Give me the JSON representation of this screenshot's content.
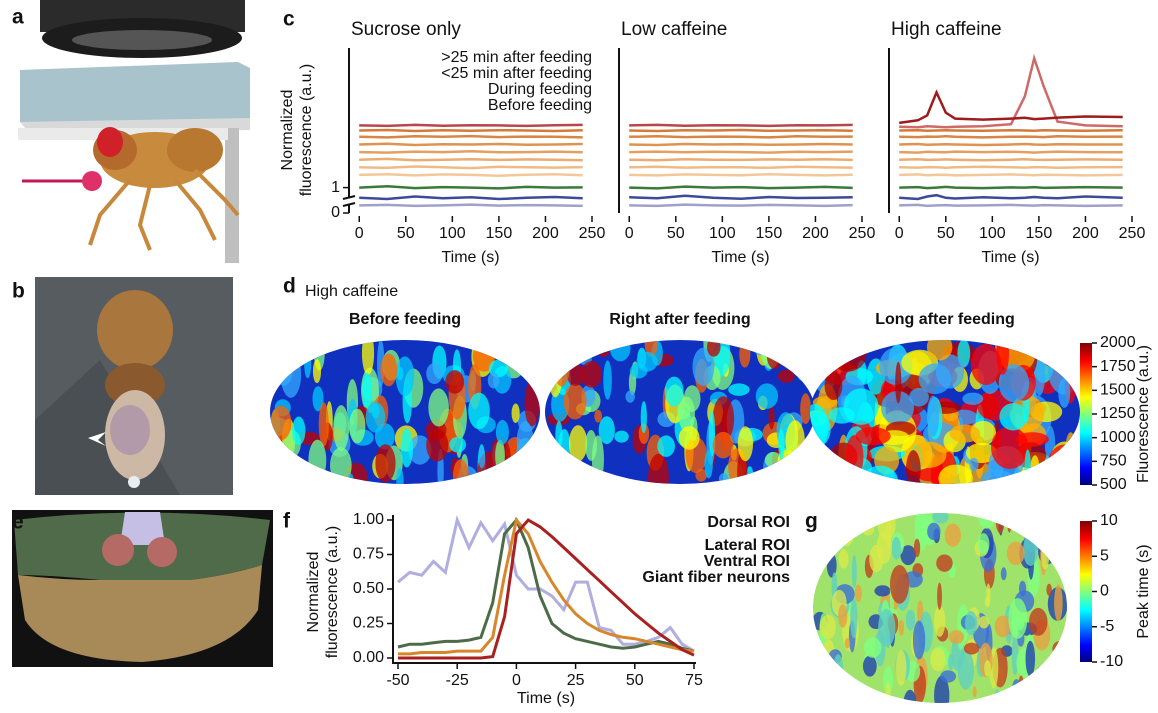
{
  "image_panels": [
    {
      "label": "a"
    },
    {
      "label": "b"
    },
    {
      "label": "e"
    }
  ],
  "chart_data": [
    {
      "type": "line-stack",
      "label": "c",
      "ylabel": [
        "Normalized",
        "fluorescence (a.u.)"
      ],
      "ylim": [
        0,
        6.5
      ],
      "yticks": [
        0,
        1
      ],
      "xlim": [
        -11,
        250
      ],
      "xticks": [
        0,
        50,
        100,
        150,
        200,
        250
      ],
      "legend": [
        {
          "name": ">25 min after feeding",
          "color": "#c0392b"
        },
        {
          "name": "<25 min after feeding",
          "color": "#f0a030"
        },
        {
          "name": "During feeding",
          "color": "#3a7a3a"
        },
        {
          "name": "Before feeding",
          "color": "#2e3c8f"
        }
      ],
      "panels": [
        {
          "title": "Sucrose only",
          "xlabel": "Time (s)",
          "x": [
            0,
            30,
            60,
            90,
            120,
            150,
            180,
            210,
            240
          ],
          "traces": [
            {
              "color": "#a0a0cc",
              "values": [
                0.3,
                0.32,
                0.28,
                0.3,
                0.33,
                0.29,
                0.31,
                0.3,
                0.28
              ]
            },
            {
              "color": "#3b4a9a",
              "values": [
                0.6,
                0.55,
                0.65,
                0.58,
                0.62,
                0.55,
                0.6,
                0.63,
                0.58
              ]
            },
            {
              "color": "#3a7a3a",
              "values": [
                1.0,
                1.05,
                0.98,
                1.02,
                1.0,
                0.97,
                1.03,
                1.0,
                1.01
              ]
            },
            {
              "color": "#f2c89a",
              "values": [
                1.5,
                1.53,
                1.48,
                1.52,
                1.5,
                1.47,
                1.51,
                1.53,
                1.49
              ]
            },
            {
              "color": "#eebb86",
              "values": [
                1.8,
                1.78,
                1.83,
                1.8,
                1.77,
                1.82,
                1.8,
                1.79,
                1.81
              ]
            },
            {
              "color": "#e9ad72",
              "values": [
                2.1,
                2.13,
                2.08,
                2.1,
                2.12,
                2.09,
                2.11,
                2.1,
                2.08
              ]
            },
            {
              "color": "#e4a060",
              "values": [
                2.4,
                2.38,
                2.42,
                2.4,
                2.43,
                2.39,
                2.4,
                2.42,
                2.39
              ]
            },
            {
              "color": "#df9350",
              "values": [
                2.7,
                2.73,
                2.68,
                2.71,
                2.7,
                2.72,
                2.69,
                2.7,
                2.72
              ]
            },
            {
              "color": "#d98644",
              "values": [
                3.0,
                2.98,
                3.02,
                3.0,
                3.03,
                2.99,
                3.01,
                3.0,
                2.98
              ]
            },
            {
              "color": "#d47a3a",
              "values": [
                3.25,
                3.27,
                3.23,
                3.26,
                3.24,
                3.26,
                3.25,
                3.23,
                3.26
              ]
            },
            {
              "color": "#b8474a",
              "values": [
                3.45,
                3.43,
                3.47,
                3.44,
                3.46,
                3.45,
                3.43,
                3.46,
                3.47
              ]
            }
          ]
        },
        {
          "title": "Low caffeine",
          "xlabel": "Time (s)",
          "x": [
            0,
            30,
            60,
            90,
            120,
            150,
            180,
            210,
            240
          ],
          "traces": [
            {
              "color": "#a0a0cc",
              "values": [
                0.3,
                0.28,
                0.33,
                0.3,
                0.29,
                0.32,
                0.3,
                0.28,
                0.31
              ]
            },
            {
              "color": "#3b4a9a",
              "values": [
                0.62,
                0.58,
                0.68,
                0.6,
                0.56,
                0.63,
                0.59,
                0.6,
                0.62
              ]
            },
            {
              "color": "#3a7a3a",
              "values": [
                1.0,
                0.97,
                1.04,
                1.0,
                1.02,
                0.98,
                1.0,
                1.03,
                0.99
              ]
            },
            {
              "color": "#f2c89a",
              "values": [
                1.5,
                1.48,
                1.52,
                1.5,
                1.49,
                1.53,
                1.5,
                1.48,
                1.51
              ]
            },
            {
              "color": "#eebb86",
              "values": [
                1.8,
                1.82,
                1.79,
                1.81,
                1.8,
                1.78,
                1.82,
                1.8,
                1.79
              ]
            },
            {
              "color": "#e9ad72",
              "values": [
                2.1,
                2.08,
                2.12,
                2.1,
                2.09,
                2.11,
                2.1,
                2.12,
                2.09
              ]
            },
            {
              "color": "#e4a060",
              "values": [
                2.4,
                2.42,
                2.39,
                2.41,
                2.4,
                2.38,
                2.41,
                2.4,
                2.42
              ]
            },
            {
              "color": "#df9350",
              "values": [
                2.7,
                2.68,
                2.72,
                2.7,
                2.71,
                2.69,
                2.7,
                2.72,
                2.7
              ]
            },
            {
              "color": "#d98644",
              "values": [
                3.0,
                3.02,
                2.99,
                3.01,
                3.0,
                2.98,
                3.02,
                3.0,
                3.01
              ]
            },
            {
              "color": "#d47a3a",
              "values": [
                3.25,
                3.23,
                3.26,
                3.25,
                3.27,
                3.24,
                3.25,
                3.26,
                3.24
              ]
            },
            {
              "color": "#b8474a",
              "values": [
                3.45,
                3.47,
                3.44,
                3.46,
                3.45,
                3.43,
                3.46,
                3.45,
                3.47
              ]
            }
          ]
        },
        {
          "title": "High caffeine",
          "xlabel": "Time (s)",
          "x": [
            0,
            20,
            30,
            40,
            50,
            60,
            90,
            120,
            135,
            145,
            155,
            170,
            200,
            240
          ],
          "traces": [
            {
              "color": "#a0a0cc",
              "values": [
                0.3,
                0.32,
                0.28,
                0.3,
                0.31,
                0.29,
                0.3,
                0.32,
                0.3,
                0.29,
                0.31,
                0.3,
                0.28,
                0.3
              ]
            },
            {
              "color": "#3b4a9a",
              "values": [
                0.6,
                0.55,
                0.65,
                0.7,
                0.6,
                0.57,
                0.62,
                0.58,
                0.6,
                0.63,
                0.6,
                0.58,
                0.65,
                0.6
              ]
            },
            {
              "color": "#3a7a3a",
              "values": [
                1.0,
                1.02,
                0.98,
                1.0,
                1.03,
                1.0,
                0.98,
                1.01,
                1.0,
                1.02,
                0.99,
                1.0,
                1.02,
                1.0
              ]
            },
            {
              "color": "#f2c89a",
              "values": [
                1.5,
                1.52,
                1.49,
                1.5,
                1.51,
                1.48,
                1.5,
                1.52,
                1.5,
                1.49,
                1.51,
                1.5,
                1.48,
                1.5
              ]
            },
            {
              "color": "#eebb86",
              "values": [
                1.8,
                1.79,
                1.81,
                1.8,
                1.78,
                1.8,
                1.82,
                1.8,
                1.79,
                1.81,
                1.8,
                1.78,
                1.8,
                1.81
              ]
            },
            {
              "color": "#e9ad72",
              "values": [
                2.1,
                2.12,
                2.09,
                2.1,
                2.11,
                2.1,
                2.08,
                2.1,
                2.12,
                2.1,
                2.09,
                2.1,
                2.11,
                2.1
              ]
            },
            {
              "color": "#e4a060",
              "values": [
                2.4,
                2.38,
                2.41,
                2.4,
                2.39,
                2.42,
                2.4,
                2.41,
                2.4,
                2.38,
                2.4,
                2.42,
                2.4,
                2.39
              ]
            },
            {
              "color": "#df9350",
              "values": [
                2.7,
                2.72,
                2.69,
                2.7,
                2.71,
                2.7,
                2.68,
                2.7,
                2.72,
                2.7,
                2.69,
                2.71,
                2.7,
                2.7
              ]
            },
            {
              "color": "#d98644",
              "values": [
                3.0,
                2.99,
                3.01,
                3.0,
                3.02,
                3.0,
                2.98,
                3.0,
                3.01,
                3.0,
                2.99,
                3.02,
                3.0,
                3.01
              ]
            },
            {
              "color": "#d47a3a",
              "values": [
                3.25,
                3.26,
                3.24,
                3.25,
                3.26,
                3.25,
                3.24,
                3.26,
                3.25,
                3.24,
                3.26,
                3.25,
                3.24,
                3.26
              ]
            },
            {
              "color": "#cc6a6a",
              "values": [
                3.4,
                3.38,
                3.42,
                3.4,
                3.38,
                3.4,
                3.42,
                3.5,
                4.6,
                6.1,
                5.0,
                3.6,
                3.45,
                3.42
              ]
            },
            {
              "color": "#9e1c1c",
              "values": [
                3.55,
                3.65,
                3.85,
                4.75,
                3.95,
                3.72,
                3.68,
                3.72,
                3.75,
                3.7,
                3.72,
                3.76,
                3.8,
                3.78
              ]
            }
          ]
        }
      ]
    },
    {
      "type": "heatmap",
      "label": "d",
      "title": "High caffeine",
      "images": [
        {
          "title": "Before feeding",
          "color": "#2e3c8f"
        },
        {
          "title": "Right after feeding",
          "color": "#f0a030"
        },
        {
          "title": "Long after feeding",
          "color": "#c0392b"
        }
      ],
      "colorbar": {
        "label": "Fluorescence (a.u.)",
        "clim": [
          500,
          2000
        ],
        "ticks": [
          500,
          750,
          1000,
          1250,
          1500,
          1750,
          2000
        ]
      }
    },
    {
      "type": "line",
      "label": "f",
      "xlabel": "Time (s)",
      "ylabel": [
        "Normalized",
        "fluorescence (a.u.)"
      ],
      "xlim": [
        -50,
        75
      ],
      "xticks": [
        -50,
        -25,
        0,
        25,
        50,
        75
      ],
      "ylim": [
        -0.03,
        1.03
      ],
      "yticks": [
        {
          "value": 0,
          "label": "0.00"
        },
        {
          "value": 0.25,
          "label": "0.25"
        },
        {
          "value": 0.5,
          "label": "0.50"
        },
        {
          "value": 0.75,
          "label": "0.75"
        },
        {
          "value": 1,
          "label": "1.00"
        }
      ],
      "x": [
        -50,
        -45,
        -40,
        -35,
        -30,
        -25,
        -20,
        -15,
        -10,
        -5,
        0,
        5,
        10,
        15,
        20,
        25,
        30,
        35,
        40,
        45,
        50,
        55,
        60,
        65,
        70,
        75
      ],
      "series": [
        {
          "name": "Dorsal ROI",
          "color": "#b0aee0",
          "values": [
            0.55,
            0.62,
            0.6,
            0.7,
            0.62,
            1.0,
            0.8,
            0.98,
            0.85,
            0.97,
            0.6,
            0.5,
            0.5,
            0.45,
            0.35,
            0.55,
            0.55,
            0.22,
            0.2,
            0.1,
            0.1,
            0.12,
            0.15,
            0.22,
            0.1,
            0.05
          ]
        },
        {
          "name": "Lateral ROI",
          "color": "#4e6b48",
          "values": [
            0.08,
            0.1,
            0.1,
            0.11,
            0.12,
            0.12,
            0.13,
            0.15,
            0.4,
            0.9,
            1.0,
            0.8,
            0.45,
            0.25,
            0.18,
            0.14,
            0.12,
            0.1,
            0.08,
            0.07,
            0.08,
            0.1,
            0.12,
            0.1,
            0.07,
            0.05
          ]
        },
        {
          "name": "Ventral ROI",
          "color": "#d8862a",
          "values": [
            0.03,
            0.03,
            0.04,
            0.04,
            0.04,
            0.05,
            0.05,
            0.05,
            0.15,
            0.6,
            1.0,
            0.9,
            0.7,
            0.55,
            0.42,
            0.32,
            0.25,
            0.2,
            0.17,
            0.15,
            0.14,
            0.12,
            0.1,
            0.08,
            0.06,
            0.05
          ]
        },
        {
          "name": "Giant fiber neurons",
          "color": "#a82020",
          "values": [
            0.0,
            0.0,
            0.0,
            0.0,
            0.0,
            0.0,
            0.0,
            0.0,
            0.01,
            0.3,
            0.9,
            1.0,
            0.95,
            0.88,
            0.8,
            0.72,
            0.64,
            0.56,
            0.48,
            0.4,
            0.32,
            0.25,
            0.18,
            0.12,
            0.06,
            0.02
          ]
        }
      ]
    },
    {
      "type": "image",
      "label": "g",
      "colorbar": {
        "label": "Peak time (s)",
        "clim": [
          -10,
          10
        ],
        "ticks": [
          -10,
          -5,
          0,
          5,
          10
        ]
      }
    }
  ]
}
